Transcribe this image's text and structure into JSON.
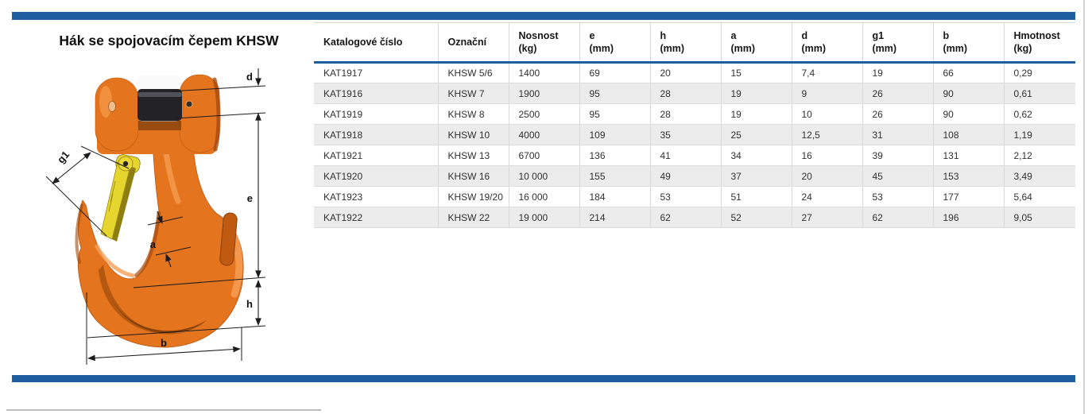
{
  "page": {
    "title": "Hák se spojovacím čepem KHSW"
  },
  "theme": {
    "accent_blue": "#1d5c9e",
    "row_alt_gray": "#ececec",
    "separator_gray": "#d9d9d9",
    "hook_orange": "#e4751e",
    "hook_orange_dark": "#a84a0e",
    "latch_yellow": "#e7d52f",
    "pin_black": "#232327"
  },
  "diagram": {
    "description": "Rozměrový nákres háku se spojovacím čepem, pojistkou a kótami",
    "dimension_labels": {
      "d": "d",
      "g1": "g1",
      "e": "e",
      "a": "a",
      "h": "h",
      "b": "b"
    }
  },
  "table": {
    "columns": [
      {
        "label": "Katalogové číslo",
        "unit": ""
      },
      {
        "label": "Označní",
        "unit": ""
      },
      {
        "label": "Nosnost",
        "unit": "(kg)"
      },
      {
        "label": "e",
        "unit": "(mm)"
      },
      {
        "label": "h",
        "unit": "(mm)"
      },
      {
        "label": "a",
        "unit": "(mm)"
      },
      {
        "label": "d",
        "unit": "(mm)"
      },
      {
        "label": "g1",
        "unit": "(mm)"
      },
      {
        "label": "b",
        "unit": "(mm)"
      },
      {
        "label": "Hmotnost",
        "unit": "(kg)"
      }
    ],
    "rows": [
      [
        "KAT1917",
        "KHSW 5/6",
        "1400",
        "69",
        "20",
        "15",
        "7,4",
        "19",
        "66",
        "0,29"
      ],
      [
        "KAT1916",
        "KHSW 7",
        "1900",
        "95",
        "28",
        "19",
        "9",
        "26",
        "90",
        "0,61"
      ],
      [
        "KAT1919",
        "KHSW 8",
        "2500",
        "95",
        "28",
        "19",
        "10",
        "26",
        "90",
        "0,62"
      ],
      [
        "KAT1918",
        "KHSW 10",
        "4000",
        "109",
        "35",
        "25",
        "12,5",
        "31",
        "108",
        "1,19"
      ],
      [
        "KAT1921",
        "KHSW 13",
        "6700",
        "136",
        "41",
        "34",
        "16",
        "39",
        "131",
        "2,12"
      ],
      [
        "KAT1920",
        "KHSW 16",
        "10 000",
        "155",
        "49",
        "37",
        "20",
        "45",
        "153",
        "3,49"
      ],
      [
        "KAT1923",
        "KHSW 19/20",
        "16 000",
        "184",
        "53",
        "51",
        "24",
        "53",
        "177",
        "5,64"
      ],
      [
        "KAT1922",
        "KHSW 22",
        "19 000",
        "214",
        "62",
        "52",
        "27",
        "62",
        "196",
        "9,05"
      ]
    ]
  }
}
